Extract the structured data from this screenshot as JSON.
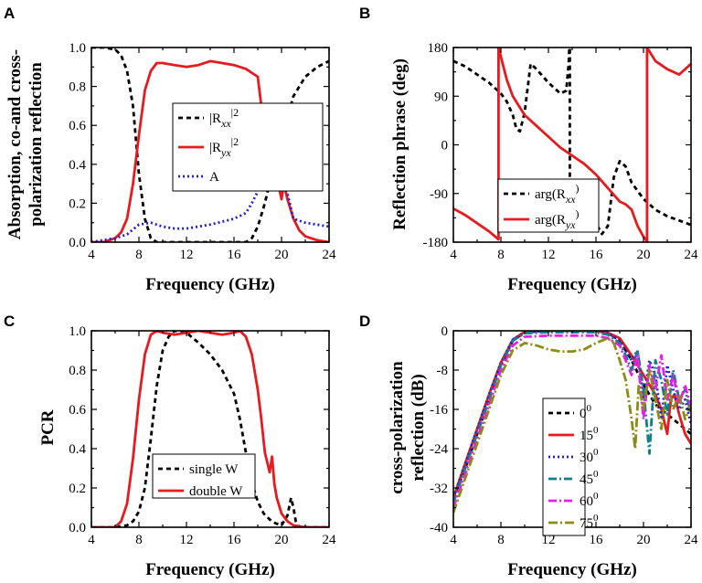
{
  "figure": {
    "series_styles": {
      "black_dash": {
        "color": "#000000",
        "dash": "5,4"
      },
      "red_solid": {
        "color": "#e8191f",
        "dash": ""
      },
      "blue_dot": {
        "color": "#1f1fd9",
        "dash": "2,3"
      },
      "teal_dashdot": {
        "color": "#0f7f8a",
        "dash": "9,3,2,3"
      },
      "magenta_dashdot": {
        "color": "#e81ee8",
        "dash": "9,3,2,3"
      },
      "olive_dashdot": {
        "color": "#8c8c14",
        "dash": "10,3,2,3"
      }
    }
  },
  "chart_data": [
    {
      "id": "A",
      "panel_label": "A",
      "type": "line",
      "xlabel": "Frequency (GHz)",
      "ylabel_lines": [
        "Absorption, co-and cross-",
        "polarization reflection"
      ],
      "xlim": [
        4,
        24
      ],
      "ylim": [
        0,
        1.0
      ],
      "xticks": [
        4,
        8,
        12,
        16,
        20,
        24
      ],
      "yticks": [
        0.0,
        0.2,
        0.4,
        0.6,
        0.8,
        1.0
      ],
      "ytick_labels": [
        "0.0",
        "0.2",
        "0.4",
        "0.6",
        "0.8",
        "1.0"
      ],
      "legend_position": "center-right",
      "series": [
        {
          "name": "|Rxx|²",
          "label_base": "|R",
          "label_sub": "xx",
          "label_sup": "|2",
          "style": "black_dash",
          "x": [
            4,
            5,
            6,
            6.5,
            7,
            7.5,
            8,
            8.5,
            9,
            9.5,
            10,
            12,
            14,
            16,
            17,
            17.5,
            18,
            18.5,
            18.8,
            19.2,
            19.6,
            20,
            20.5,
            21,
            22,
            23,
            24
          ],
          "y": [
            1.0,
            1.0,
            0.99,
            0.96,
            0.88,
            0.7,
            0.35,
            0.12,
            0.02,
            0.0,
            0.0,
            0.0,
            0.0,
            0.0,
            0.0,
            0.02,
            0.08,
            0.18,
            0.25,
            0.4,
            0.5,
            0.55,
            0.64,
            0.75,
            0.85,
            0.9,
            0.93
          ]
        },
        {
          "name": "|Ryx|²",
          "label_base": "|R",
          "label_sub": "yx",
          "label_sup": "|2",
          "style": "red_solid",
          "x": [
            4,
            5,
            6,
            6.5,
            7,
            7.5,
            8,
            8.5,
            9,
            9.5,
            10,
            11,
            12,
            13,
            14,
            15,
            16,
            17,
            18,
            18.5,
            19,
            19.5,
            20,
            20.2,
            20.5,
            21,
            21.5,
            22,
            23,
            24
          ],
          "y": [
            0.0,
            0.0,
            0.02,
            0.05,
            0.12,
            0.3,
            0.55,
            0.78,
            0.88,
            0.92,
            0.92,
            0.91,
            0.9,
            0.91,
            0.93,
            0.92,
            0.91,
            0.89,
            0.85,
            0.6,
            0.45,
            0.36,
            0.22,
            0.3,
            0.22,
            0.12,
            0.06,
            0.03,
            0.01,
            0.0
          ]
        },
        {
          "name": "A",
          "label_base": "A",
          "label_sub": "",
          "label_sup": "",
          "style": "blue_dot",
          "x": [
            4,
            6,
            7,
            8,
            9,
            10,
            11,
            12,
            14,
            16,
            17,
            17.5,
            18,
            18.5,
            19,
            19.5,
            20,
            20.5,
            21,
            22,
            23,
            24
          ],
          "y": [
            0.0,
            0.02,
            0.04,
            0.09,
            0.1,
            0.08,
            0.07,
            0.07,
            0.09,
            0.12,
            0.15,
            0.2,
            0.26,
            0.33,
            0.32,
            0.3,
            0.32,
            0.25,
            0.12,
            0.1,
            0.09,
            0.08
          ]
        }
      ]
    },
    {
      "id": "B",
      "panel_label": "B",
      "type": "line",
      "xlabel": "Frequency (GHz)",
      "ylabel_lines": [
        "Reflection phrase (deg)"
      ],
      "xlim": [
        4,
        24
      ],
      "ylim": [
        -180,
        180
      ],
      "xticks": [
        4,
        8,
        12,
        16,
        20,
        24
      ],
      "yticks": [
        -180,
        -90,
        0,
        90,
        180
      ],
      "ytick_labels": [
        "-180",
        "-90",
        "0",
        "90",
        "180"
      ],
      "legend_position": "bottom-center",
      "series": [
        {
          "name": "arg(Rxx)",
          "label_base": "arg(R",
          "label_sub": "xx",
          "label_sup": ")",
          "style": "black_dash",
          "x": [
            4,
            5,
            6,
            7,
            8,
            8.5,
            9,
            9.3,
            9.6,
            10,
            10.5,
            11,
            12,
            13,
            13.5,
            13.7,
            13.75,
            13.8,
            13.8,
            14,
            15,
            16,
            16.5,
            17,
            17.5,
            18,
            18.5,
            19,
            20,
            21,
            22,
            23,
            24
          ],
          "y": [
            155,
            145,
            130,
            115,
            95,
            80,
            55,
            30,
            25,
            60,
            150,
            140,
            115,
            95,
            100,
            150,
            178,
            180,
            -100,
            -110,
            -125,
            -145,
            -165,
            -150,
            -60,
            -30,
            -40,
            -70,
            -100,
            -120,
            -132,
            -140,
            -148
          ]
        },
        {
          "name": "arg(Ryx)",
          "label_base": "arg(R",
          "label_sub": "yx",
          "label_sup": ")",
          "style": "red_solid",
          "x": [
            4,
            5,
            6,
            7,
            7.8,
            7.8,
            8.5,
            9,
            10,
            11,
            12,
            13,
            14,
            15,
            16,
            17,
            18,
            18.5,
            19,
            19.5,
            20,
            20.3,
            20.3,
            21,
            22,
            23,
            24
          ],
          "y": [
            -118,
            -130,
            -145,
            -160,
            -175,
            180,
            120,
            90,
            55,
            35,
            15,
            -5,
            -20,
            -35,
            -55,
            -80,
            -105,
            -110,
            -120,
            -150,
            -170,
            -178,
            180,
            155,
            140,
            130,
            150
          ]
        }
      ]
    },
    {
      "id": "C",
      "panel_label": "C",
      "type": "line",
      "xlabel": "Frequency (GHz)",
      "ylabel_lines": [
        "PCR"
      ],
      "xlim": [
        4,
        24
      ],
      "ylim": [
        0,
        1.0
      ],
      "xticks": [
        4,
        8,
        12,
        16,
        20,
        24
      ],
      "yticks": [
        0.0,
        0.2,
        0.4,
        0.6,
        0.8,
        1.0
      ],
      "ytick_labels": [
        "0.0",
        "0.2",
        "0.4",
        "0.6",
        "0.8",
        "1.0"
      ],
      "legend_position": "bottom-center",
      "series": [
        {
          "name": "single W",
          "label_base": "single W",
          "label_sub": "",
          "label_sup": "",
          "style": "black_dash",
          "x": [
            4,
            6,
            7,
            7.5,
            8,
            8.5,
            9,
            9.5,
            10,
            10.5,
            11,
            12,
            13,
            14,
            15,
            16,
            16.5,
            17,
            17.5,
            18,
            18.5,
            19,
            19.5,
            20,
            20.5,
            20.8,
            21,
            21.2,
            21.5,
            22,
            23,
            24
          ],
          "y": [
            0.0,
            0.0,
            0.01,
            0.03,
            0.08,
            0.2,
            0.45,
            0.72,
            0.9,
            0.97,
            1.0,
            0.99,
            0.94,
            0.88,
            0.8,
            0.68,
            0.55,
            0.38,
            0.23,
            0.13,
            0.07,
            0.04,
            0.02,
            0.01,
            0.06,
            0.15,
            0.1,
            0.03,
            0.0,
            0.0,
            0.0,
            0.0
          ]
        },
        {
          "name": "double W",
          "label_base": "double W",
          "label_sub": "",
          "label_sup": "",
          "style": "red_solid",
          "x": [
            4,
            6,
            6.5,
            7,
            7.5,
            8,
            8.5,
            9,
            9.5,
            10,
            11,
            12,
            13,
            14,
            15,
            16,
            16.5,
            17,
            17.5,
            18,
            18.3,
            18.6,
            19,
            19.2,
            19.4,
            19.6,
            20,
            20.5,
            21,
            22,
            23,
            24
          ],
          "y": [
            0.0,
            0.0,
            0.03,
            0.12,
            0.35,
            0.65,
            0.88,
            0.98,
            1.0,
            0.99,
            0.98,
            0.99,
            1.0,
            0.99,
            0.98,
            0.99,
            1.0,
            0.97,
            0.88,
            0.7,
            0.55,
            0.38,
            0.28,
            0.36,
            0.22,
            0.15,
            0.07,
            0.03,
            0.01,
            0.0,
            0.0,
            0.0
          ]
        }
      ]
    },
    {
      "id": "D",
      "panel_label": "D",
      "type": "line",
      "xlabel": "Frequency (GHz)",
      "ylabel_lines": [
        "cross-polarization",
        "reflection (dB)"
      ],
      "xlim": [
        4,
        24
      ],
      "ylim": [
        -40,
        0
      ],
      "xticks": [
        4,
        8,
        12,
        16,
        20,
        24
      ],
      "yticks": [
        -40,
        -32,
        -24,
        -16,
        -8,
        0
      ],
      "ytick_labels": [
        "-40",
        "-32",
        "-24",
        "-16",
        "-8",
        "0"
      ],
      "legend_position": "center",
      "legend_title": "",
      "series": [
        {
          "name": "0°",
          "label_base": "0",
          "label_sub": "",
          "label_sup": "0",
          "style": "black_dash",
          "x": [
            4,
            5,
            6,
            7,
            8,
            9,
            10,
            12,
            14,
            16,
            17,
            18,
            19,
            20,
            21,
            22,
            23,
            24
          ],
          "y": [
            -34,
            -28,
            -21,
            -14,
            -7,
            -2,
            -0.3,
            0,
            0,
            0,
            -0.5,
            -2,
            -6,
            -11,
            -15,
            -17,
            -19,
            -21
          ]
        },
        {
          "name": "15°",
          "label_base": "15",
          "label_sub": "",
          "label_sup": "0",
          "style": "red_solid",
          "x": [
            4,
            5,
            6,
            7,
            8,
            9,
            10,
            12,
            14,
            16,
            17,
            18,
            19,
            20,
            20.5,
            21,
            21.5,
            22,
            22.3,
            22.6,
            23,
            23.5,
            24
          ],
          "y": [
            -34,
            -27,
            -20,
            -13,
            -6.5,
            -1.8,
            -0.2,
            0,
            0,
            0,
            -0.4,
            -1.5,
            -5,
            -9,
            -11,
            -13,
            -16,
            -21,
            -14,
            -13,
            -17,
            -21,
            -23
          ]
        },
        {
          "name": "30°",
          "label_base": "30",
          "label_sub": "",
          "label_sup": "0",
          "style": "blue_dot",
          "x": [
            4,
            5,
            6,
            7,
            8,
            9,
            10,
            12,
            14,
            16,
            17,
            18,
            19,
            19.5,
            20,
            20.5,
            21,
            21.5,
            22,
            22.5,
            23,
            23.5,
            24
          ],
          "y": [
            -34,
            -27,
            -20,
            -13,
            -6.5,
            -1.8,
            -0.3,
            0,
            0,
            0,
            -0.5,
            -2,
            -6,
            -4,
            -14,
            -6,
            -9,
            -18,
            -7,
            -12,
            -16,
            -14,
            -19
          ]
        },
        {
          "name": "45°",
          "label_base": "45",
          "label_sub": "",
          "label_sup": "0",
          "style": "teal_dashdot",
          "x": [
            4,
            5,
            6,
            7,
            8,
            9,
            10,
            12,
            14,
            16,
            17,
            18,
            18.5,
            19,
            19.5,
            20,
            20.5,
            21,
            21.5,
            22,
            22.5,
            23,
            23.5,
            24
          ],
          "y": [
            -35,
            -28,
            -21,
            -14,
            -7,
            -2,
            -0.5,
            -0.3,
            -0.3,
            -0.3,
            -0.8,
            -2.5,
            -5,
            -8,
            -4,
            -12,
            -25,
            -6,
            -10,
            -17,
            -8,
            -14,
            -12,
            -17
          ]
        },
        {
          "name": "60°",
          "label_base": "60",
          "label_sub": "",
          "label_sup": "0",
          "style": "magenta_dashdot",
          "x": [
            4,
            5,
            6,
            7,
            8,
            9,
            10,
            12,
            14,
            16,
            17,
            18,
            18.5,
            19,
            19.5,
            20,
            20.5,
            21,
            21.5,
            22,
            22.5,
            23,
            23.5,
            24
          ],
          "y": [
            -36,
            -29,
            -22,
            -15,
            -8,
            -3,
            -1.2,
            -1,
            -1,
            -1,
            -1.5,
            -3,
            -6,
            -9,
            -5,
            -18,
            -7,
            -12,
            -5,
            -14,
            -9,
            -15,
            -11,
            -16
          ]
        },
        {
          "name": "75°",
          "label_base": "75",
          "label_sub": "",
          "label_sup": "0",
          "style": "olive_dashdot",
          "x": [
            4,
            5,
            6,
            7,
            8,
            9,
            10,
            11,
            12,
            13,
            14,
            15,
            16,
            17,
            17.5,
            18,
            18.5,
            19,
            19.3,
            19.6,
            20,
            20.5,
            21,
            21.5,
            22,
            22.5,
            23,
            23.5,
            24
          ],
          "y": [
            -37,
            -30,
            -23,
            -16,
            -9,
            -4,
            -2.5,
            -3,
            -3.8,
            -4.2,
            -4.2,
            -3.8,
            -2.5,
            -1.5,
            -2.5,
            -6,
            -10,
            -18,
            -24,
            -11,
            -16,
            -8,
            -14,
            -20,
            -10,
            -16,
            -13,
            -18,
            -15
          ]
        }
      ]
    }
  ]
}
